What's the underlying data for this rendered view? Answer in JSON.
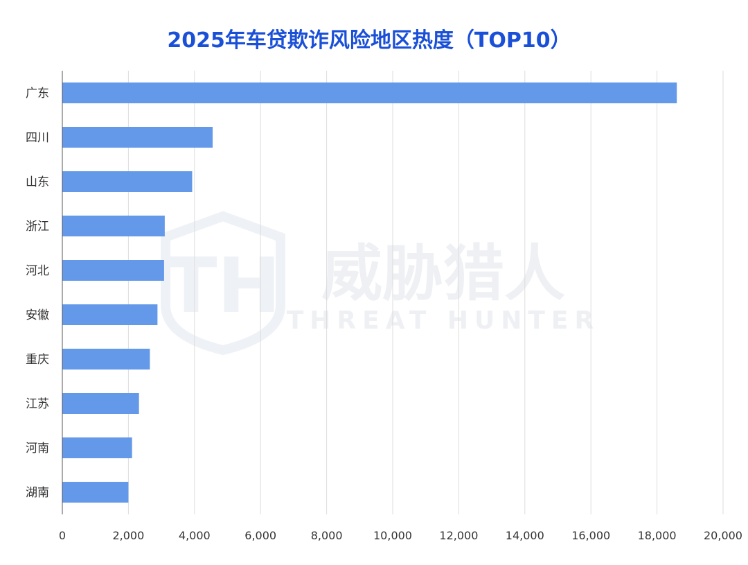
{
  "chart_data": {
    "type": "bar",
    "orientation": "horizontal",
    "title": "2025年车贷欺诈风险地区热度（TOP10）",
    "categories": [
      "广东",
      "四川",
      "山东",
      "浙江",
      "河北",
      "安徽",
      "重庆",
      "江苏",
      "河南",
      "湖南"
    ],
    "values": [
      18600,
      4550,
      3930,
      3100,
      3080,
      2880,
      2650,
      2320,
      2110,
      2000
    ],
    "xlim": [
      0,
      20000
    ],
    "x_ticks": [
      0,
      2000,
      4000,
      6000,
      8000,
      10000,
      12000,
      14000,
      16000,
      18000,
      20000
    ],
    "x_tick_labels": [
      "0",
      "2,000",
      "4,000",
      "6,000",
      "8,000",
      "10,000",
      "12,000",
      "14,000",
      "16,000",
      "18,000",
      "20,000"
    ],
    "xlabel": "",
    "ylabel": "",
    "grid": "vertical",
    "legend": "none",
    "bar_color": "#6499e9",
    "grid_color": "#dddddd",
    "title_color": "#1a4fd8"
  },
  "watermark": {
    "logo_text": "TH",
    "name_cn": "威胁猎人",
    "name_en": "THREAT HUNTER"
  }
}
